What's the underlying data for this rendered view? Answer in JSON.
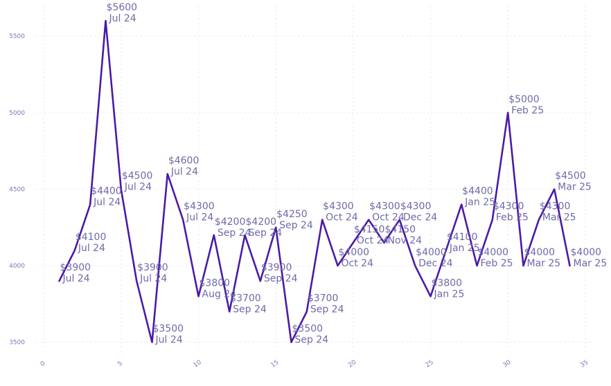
{
  "chart_data": {
    "type": "line",
    "title": "",
    "xlabel": "",
    "ylabel": "",
    "xlim": [
      -0.5,
      35.5
    ],
    "ylim": [
      3440,
      5700
    ],
    "x_ticks": [
      0,
      5,
      10,
      15,
      20,
      25,
      30,
      35
    ],
    "y_ticks": [
      3500,
      4000,
      4500,
      5000,
      5500
    ],
    "grid": true,
    "legend": "none",
    "line_color": "#4a1aa8",
    "series": [
      {
        "x": [
          1,
          2,
          3,
          4,
          5,
          6,
          7,
          8,
          9,
          10,
          11,
          12,
          13,
          14,
          15,
          16,
          17,
          18,
          19,
          20,
          21,
          22,
          23,
          24,
          25,
          26,
          27,
          28,
          29,
          30,
          31,
          32,
          33,
          34
        ],
        "values": [
          3900,
          4100,
          4400,
          5600,
          4500,
          3900,
          3500,
          4600,
          4300,
          3800,
          4200,
          3700,
          4200,
          3900,
          4250,
          3500,
          3700,
          4300,
          4000,
          4150,
          4300,
          4150,
          4300,
          4000,
          3800,
          4100,
          4400,
          4000,
          4300,
          5000,
          4000,
          4300,
          4500,
          4000
        ],
        "labels": [
          [
            "$3900",
            "Jul 24"
          ],
          [
            "$4100",
            "Jul 24"
          ],
          [
            "$4400",
            "Jul 24"
          ],
          [
            "$5600",
            "Jul 24"
          ],
          [
            "$4500",
            "Jul 24"
          ],
          [
            "$3900",
            "Jul 24"
          ],
          [
            "$3500",
            "Jul 24"
          ],
          [
            "$4600",
            "Jul 24"
          ],
          [
            "$4300",
            "Jul 24"
          ],
          [
            "$3800",
            "Aug 24"
          ],
          [
            "$4200",
            "Sep 24"
          ],
          [
            "$3700",
            "Sep 24"
          ],
          [
            "$4200",
            "Sep 24"
          ],
          [
            "$3900",
            "Sep 24"
          ],
          [
            "$4250",
            "Sep 24"
          ],
          [
            "$3500",
            "Sep 24"
          ],
          [
            "$3700",
            "Sep 24"
          ],
          [
            "$4300",
            "Oct 24"
          ],
          [
            "$4000",
            "Oct 24"
          ],
          [
            "$4150",
            "Oct 24"
          ],
          [
            "$4300",
            "Oct 24"
          ],
          [
            "$4150",
            "Nov 24"
          ],
          [
            "$4300",
            "Dec 24"
          ],
          [
            "$4000",
            "Dec 24"
          ],
          [
            "$3800",
            "Jan 25"
          ],
          [
            "$4100",
            "Jan 25"
          ],
          [
            "$4400",
            "Jan 25"
          ],
          [
            "$4000",
            "Feb 25"
          ],
          [
            "$4300",
            "Feb 25"
          ],
          [
            "$5000",
            "Feb 25"
          ],
          [
            "$4000",
            "Mar 25"
          ],
          [
            "$4300",
            "Mar 25"
          ],
          [
            "$4500",
            "Mar 25"
          ],
          [
            "$4000",
            "Mar 25"
          ]
        ]
      }
    ]
  }
}
